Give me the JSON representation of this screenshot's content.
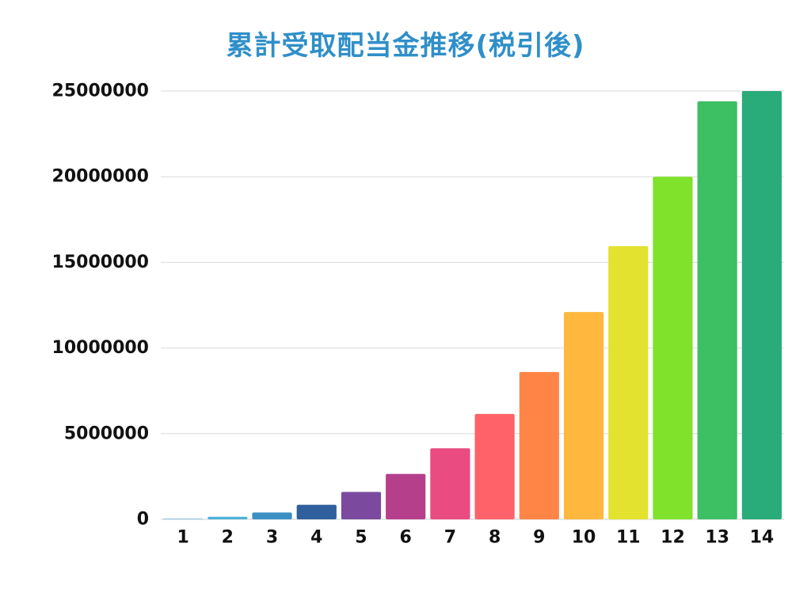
{
  "chart_data": {
    "type": "bar",
    "title": "累計受取配当金推移(税引後)",
    "xlabel": "",
    "ylabel": "",
    "categories": [
      "1",
      "2",
      "3",
      "4",
      "5",
      "6",
      "7",
      "8",
      "9",
      "10",
      "11",
      "12",
      "13",
      "14"
    ],
    "values": [
      50000,
      150000,
      400000,
      850000,
      1600000,
      2650000,
      4150000,
      6150000,
      8600000,
      12100000,
      15950000,
      20000000,
      24400000,
      25000000
    ],
    "ylim": [
      0,
      25000000
    ],
    "yticks": [
      "0",
      "5000000",
      "10000000",
      "15000000",
      "20000000",
      "25000000"
    ],
    "grid": true,
    "legend": "none",
    "colors": [
      "#8ecae6",
      "#4cb3d9",
      "#3a8fc4",
      "#2f5f9c",
      "#7b4a9e",
      "#b63f8c",
      "#ea4b80",
      "#ff6268",
      "#ff8547",
      "#ffb73e",
      "#e3e22e",
      "#80e22b",
      "#3dbf63",
      "#2aab7a"
    ],
    "title_color": "#2f8fc9"
  }
}
